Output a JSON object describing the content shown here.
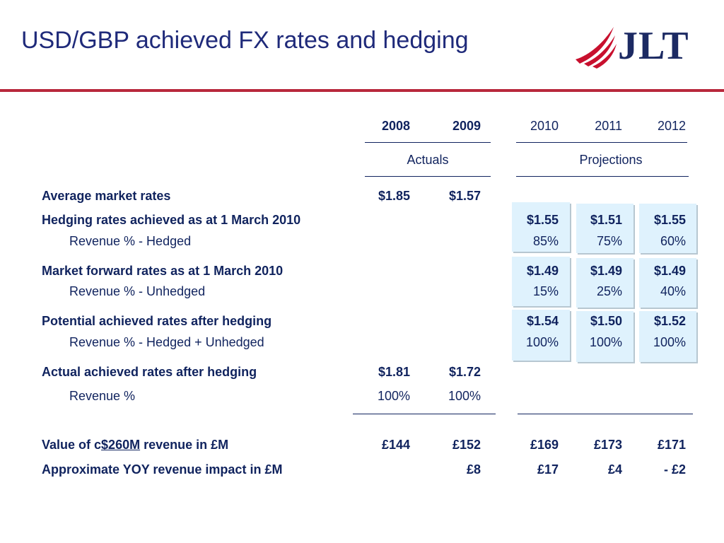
{
  "title": "USD/GBP achieved FX rates and hedging",
  "logo": {
    "text": "JLT",
    "icon": "sail-swoosh-icon"
  },
  "colors": {
    "brand_red": "#b8283c",
    "navy": "#10235e",
    "highlight": "#dff2fd"
  },
  "years": {
    "actuals": [
      "2008",
      "2009"
    ],
    "projections": [
      "2010",
      "2011",
      "2012"
    ],
    "actuals_label": "Actuals",
    "projections_label": "Projections"
  },
  "rows": {
    "avg_market": {
      "label": "Average market rates",
      "values": [
        "$1.85",
        "$1.57"
      ]
    },
    "hedging": {
      "label": "Hedging rates achieved as at 1 March 2010",
      "rates": [
        "$1.55",
        "$1.51",
        "$1.55"
      ],
      "sub_label": "Revenue % - Hedged",
      "sub_values": [
        "85%",
        "75%",
        "60%"
      ]
    },
    "forward": {
      "label": "Market forward rates as at 1 March 2010",
      "rates": [
        "$1.49",
        "$1.49",
        "$1.49"
      ],
      "sub_label": "Revenue % - Unhedged",
      "sub_values": [
        "15%",
        "25%",
        "40%"
      ]
    },
    "potential": {
      "label": "Potential achieved rates after hedging",
      "rates": [
        "$1.54",
        "$1.50",
        "$1.52"
      ],
      "sub_label": "Revenue % - Hedged + Unhedged",
      "sub_values": [
        "100%",
        "100%",
        "100%"
      ]
    },
    "actual_achieved": {
      "label": "Actual achieved rates after hedging",
      "values": [
        "$1.81",
        "$1.72"
      ],
      "sub_label": "Revenue %",
      "sub_values": [
        "100%",
        "100%"
      ]
    },
    "value": {
      "label_prefix": "Value of c",
      "label_amount": "$260M",
      "label_suffix": " revenue in £M",
      "values": [
        "£144",
        "£152",
        "£169",
        "£173",
        "£171"
      ]
    },
    "yoy": {
      "label": "Approximate YOY revenue impact in £M",
      "values": [
        "£8",
        "£17",
        "£4",
        "- £2"
      ]
    }
  }
}
